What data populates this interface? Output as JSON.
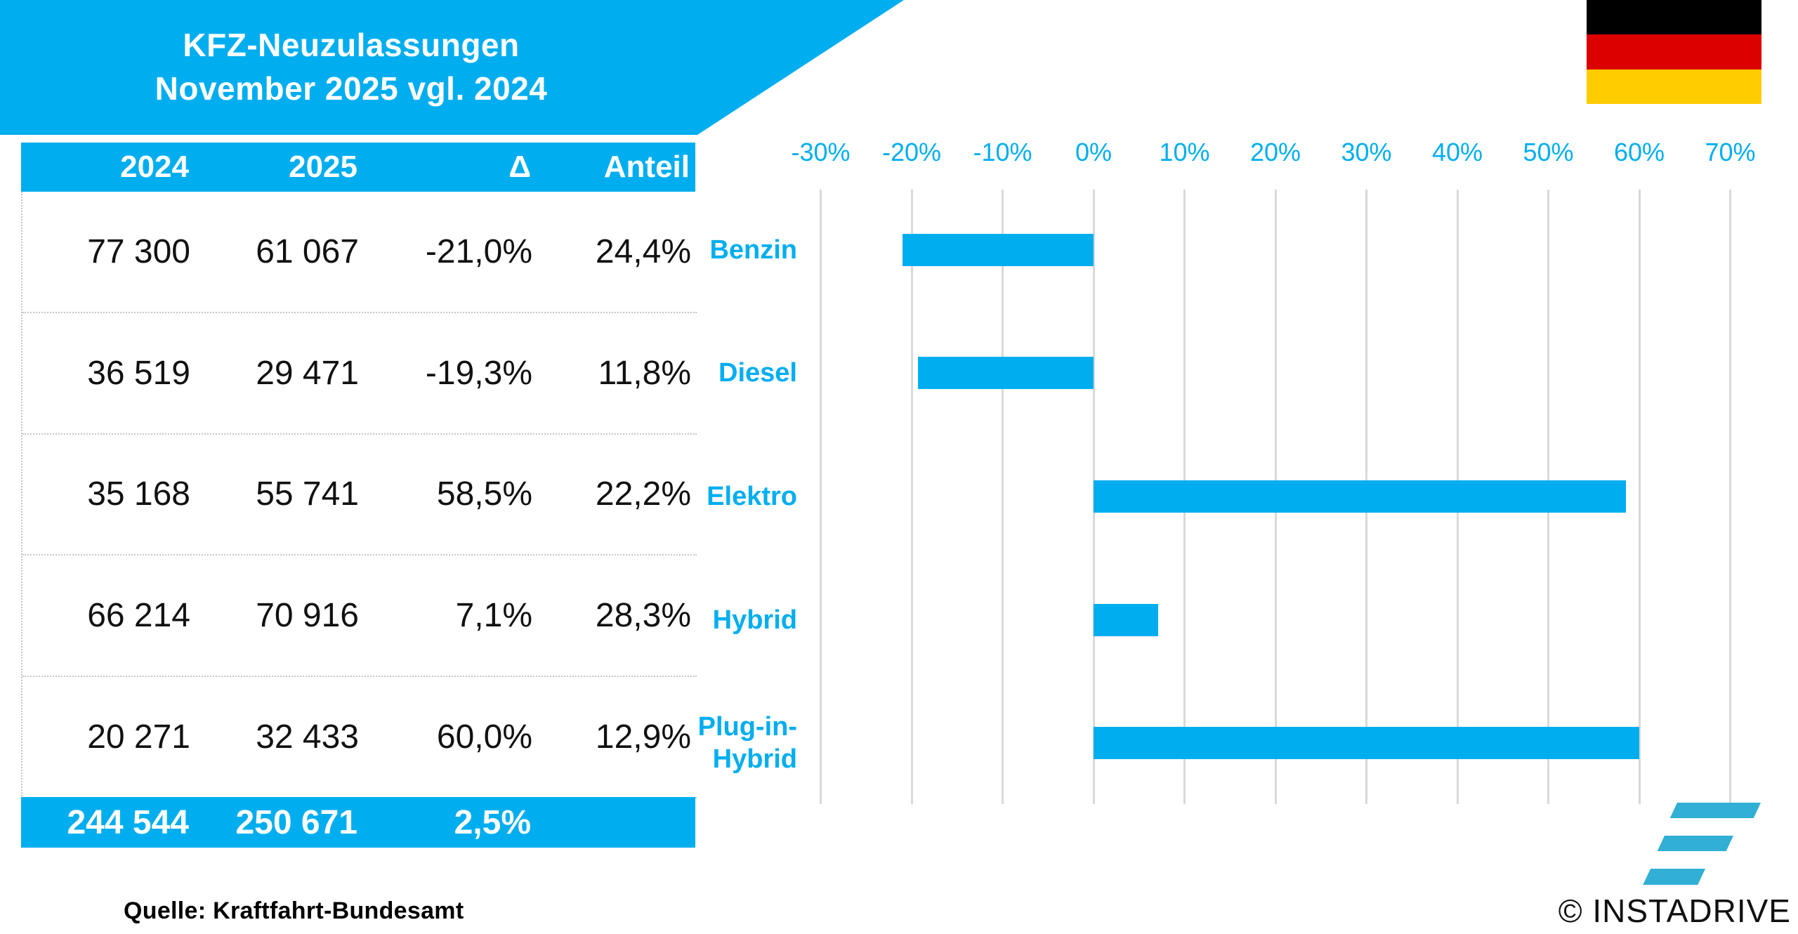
{
  "title": {
    "line1": "KFZ-Neuzulassungen",
    "line2": "November 2025 vgl. 2024"
  },
  "colors": {
    "accent": "#00AEEF",
    "logo": "#31AFD4",
    "gridline": "#D9D9D9",
    "flag_black": "#000000",
    "flag_red": "#DD0000",
    "flag_gold": "#FFCC00"
  },
  "table": {
    "headers": {
      "col1": "2024",
      "col2": "2025",
      "col3": "Δ",
      "col4": "Anteil"
    },
    "rows": [
      {
        "y2024": "77 300",
        "y2025": "61 067",
        "delta": "-21,0%",
        "share": "24,4%"
      },
      {
        "y2024": "36 519",
        "y2025": "29 471",
        "delta": "-19,3%",
        "share": "11,8%"
      },
      {
        "y2024": "35 168",
        "y2025": "55 741",
        "delta": "58,5%",
        "share": "22,2%"
      },
      {
        "y2024": "66 214",
        "y2025": "70 916",
        "delta": "7,1%",
        "share": "28,3%"
      },
      {
        "y2024": "20 271",
        "y2025": "32 433",
        "delta": "60,0%",
        "share": "12,9%"
      }
    ],
    "total": {
      "y2024": "244 544",
      "y2025": "250 671",
      "delta": "2,5%",
      "share": ""
    }
  },
  "chart_data": {
    "type": "bar",
    "orientation": "horizontal",
    "categories": [
      "Benzin",
      "Diesel",
      "Elektro",
      "Hybrid",
      "Plug-in-Hybrid"
    ],
    "category_label_lines": [
      [
        "Benzin"
      ],
      [
        "Diesel"
      ],
      [
        "Elektro"
      ],
      [
        "Hybrid"
      ],
      [
        "Plug-in-",
        "Hybrid"
      ]
    ],
    "values": [
      -21.0,
      -19.3,
      58.5,
      7.1,
      60.0
    ],
    "unit": "%",
    "title": "",
    "xlabel": "",
    "ylabel": "",
    "xlim": [
      -30,
      70
    ],
    "xtick_step": 10,
    "xticks": [
      "-30%",
      "-20%",
      "-10%",
      "0%",
      "10%",
      "20%",
      "30%",
      "40%",
      "50%",
      "60%",
      "70%"
    ],
    "grid": true,
    "legend": false,
    "bar_color": "#00AEEF"
  },
  "footer": {
    "source": "Quelle: Kraftfahrt-Bundesamt",
    "credit": "© INSTADRIVE"
  }
}
